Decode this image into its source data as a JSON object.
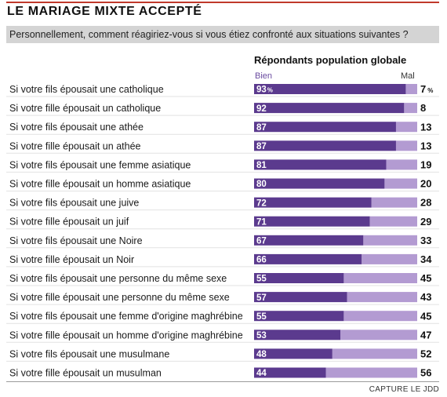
{
  "header": {
    "title": "LE MARIAGE MIXTE ACCEPTÉ",
    "subtitle": "Personnellement, comment réagiriez-vous si vous étiez confronté aux situations suivantes ?"
  },
  "legend": {
    "heading": "Répondants population globale",
    "bien": "Bien",
    "mal": "Mal"
  },
  "footer": {
    "credit": "CAPTURE LE JDD"
  },
  "colors": {
    "bien": "#5b3a8e",
    "mal": "#b39bd2",
    "accent": "#c0392b"
  },
  "chart_data": {
    "type": "bar",
    "orientation": "horizontal",
    "stacked": true,
    "unit_symbol": "%",
    "xlim": [
      0,
      100
    ],
    "categories": [
      "Si votre fils épousait une catholique",
      "Si votre fille épousait un catholique",
      "Si votre fils épousait une athée",
      "Si votre fille épousait un athée",
      "Si votre fils épousait une femme asiatique",
      "Si votre fille épousait un homme asiatique",
      "Si votre fils épousait une juive",
      "Si votre fille épousait un juif",
      "Si votre fils épousait une Noire",
      "Si votre fille épousait un Noir",
      "Si votre fils épousait une personne du même sexe",
      "Si votre fille épousait une personne du même sexe",
      "Si votre fils épousait une femme d'origine maghrébine",
      "Si votre fille épousait un homme d'origine maghrébine",
      "Si votre fils épousait une musulmane",
      "Si votre fille épousait un musulman"
    ],
    "series": [
      {
        "name": "Bien",
        "values": [
          93,
          92,
          87,
          87,
          81,
          80,
          72,
          71,
          67,
          66,
          55,
          57,
          55,
          53,
          48,
          44
        ]
      },
      {
        "name": "Mal",
        "values": [
          7,
          8,
          13,
          13,
          19,
          20,
          28,
          29,
          33,
          34,
          45,
          43,
          45,
          47,
          52,
          56
        ]
      }
    ]
  }
}
